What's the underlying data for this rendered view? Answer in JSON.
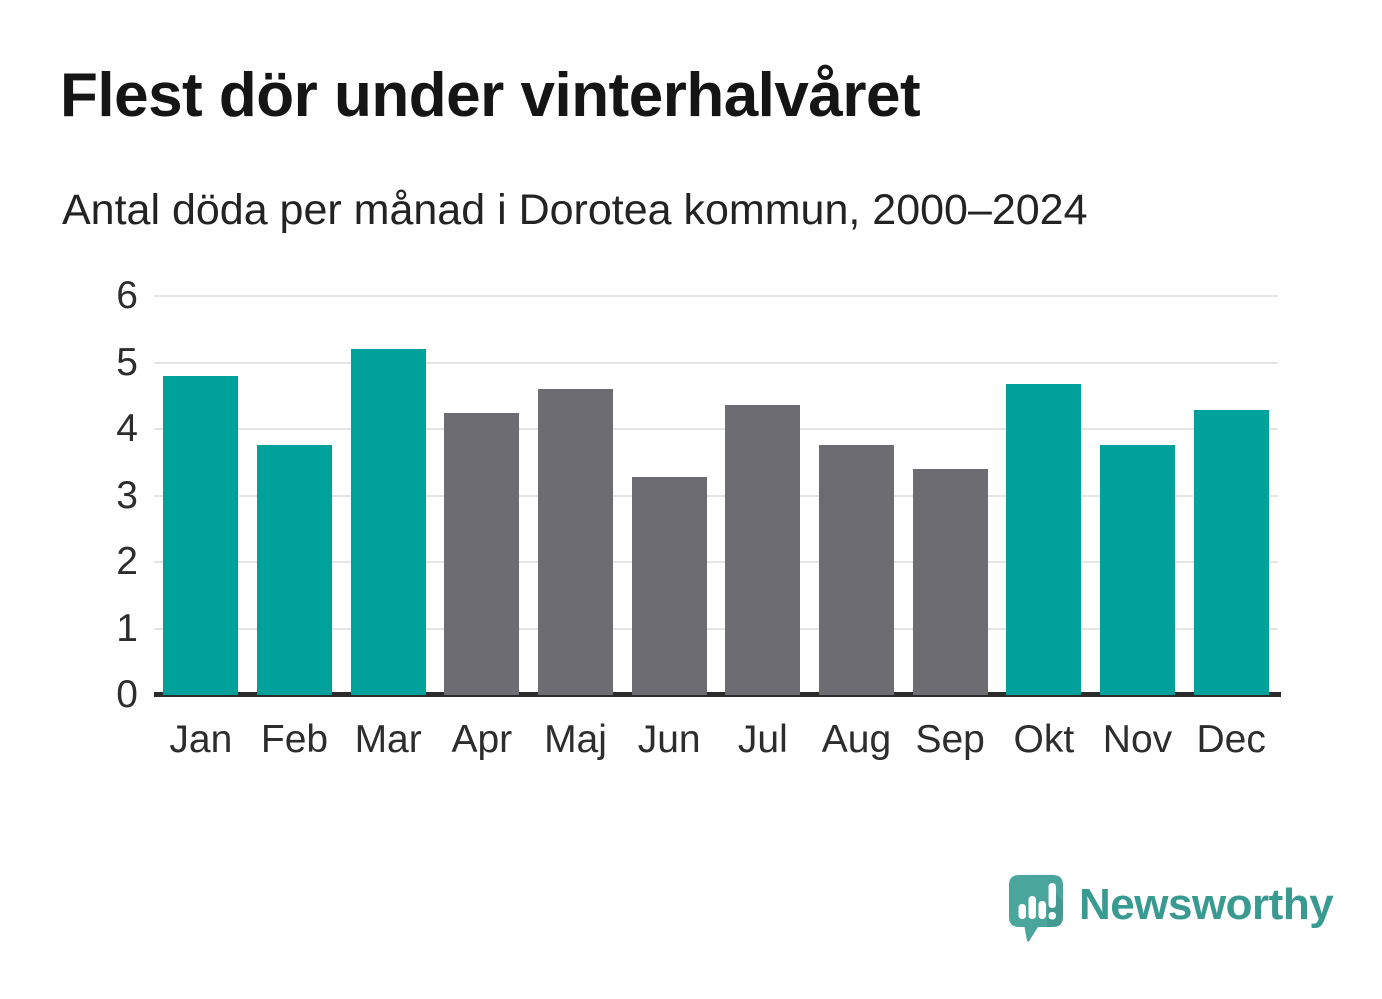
{
  "header": {
    "title": "Flest dör under vinterhalvåret",
    "subtitle": "Antal döda per månad i Dorotea kommun, 2000–2024"
  },
  "chart_data": {
    "type": "bar",
    "title": "Flest dör under vinterhalvåret",
    "subtitle": "Antal döda per månad i Dorotea kommun, 2000–2024",
    "categories": [
      "Jan",
      "Feb",
      "Mar",
      "Apr",
      "Maj",
      "Jun",
      "Jul",
      "Aug",
      "Sep",
      "Okt",
      "Nov",
      "Dec"
    ],
    "values": [
      4.8,
      3.76,
      5.2,
      4.24,
      4.6,
      3.28,
      4.36,
      3.76,
      3.4,
      4.68,
      3.76,
      4.28
    ],
    "bar_seasons": [
      "winter",
      "winter",
      "winter",
      "summer",
      "summer",
      "summer",
      "summer",
      "summer",
      "summer",
      "winter",
      "winter",
      "winter"
    ],
    "colors": {
      "winter": "#00a19a",
      "summer": "#6c6c72"
    },
    "xlabel": "",
    "ylabel": "",
    "ylim": [
      0,
      6
    ],
    "yticks": [
      0,
      1,
      2,
      3,
      4,
      5,
      6
    ],
    "grid": true,
    "legend": "none"
  },
  "branding": {
    "logo_text": "Newsworthy",
    "logo_text_color": "#399a92",
    "logo_icon": "newsworthy-speech-bubble-bar-chart-icon",
    "logo_icon_color": "#4aa69d",
    "logo_icon_shade_color": "#3f9c92",
    "logo_icon_mark_color": "#ffffff"
  }
}
